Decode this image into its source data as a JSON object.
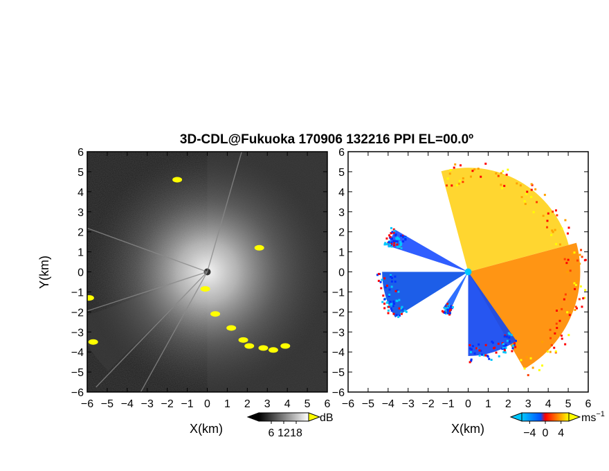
{
  "figure": {
    "title": "3D-CDL@Fukuoka 170906 132216 PPI EL=00.0º"
  },
  "chart_data": [
    {
      "type": "heatmap",
      "panel": "reflectivity",
      "xlabel": "X(km)",
      "ylabel": "Y(km)",
      "xlim": [
        -6,
        6
      ],
      "ylim": [
        -6,
        6
      ],
      "xticks": [
        "−6",
        "−5",
        "−4",
        "−3",
        "−2",
        "−1",
        "0",
        "1",
        "2",
        "3",
        "4",
        "5",
        "6"
      ],
      "yticks": [
        "6",
        "5",
        "4",
        "3",
        "2",
        "1",
        "0",
        "−1",
        "−2",
        "−3",
        "−4",
        "−5",
        "−6"
      ],
      "background_color": "#1e1e1e",
      "colorbar": {
        "unit": "dB",
        "ticks": [
          "6",
          "12",
          "18"
        ],
        "range": [
          0,
          24
        ],
        "colors": [
          "#000000",
          "#ffffff"
        ],
        "flag_color": "#ffff00"
      },
      "rays_deg": [
        160,
        198,
        226,
        241,
        74
      ],
      "flagged_regions": [
        {
          "x": -1.5,
          "y": 4.6
        },
        {
          "x": 2.6,
          "y": 1.2
        },
        {
          "x": -0.1,
          "y": -0.85
        },
        {
          "x": 0.4,
          "y": -2.1
        },
        {
          "x": 1.2,
          "y": -2.8
        },
        {
          "x": 1.8,
          "y": -3.4
        },
        {
          "x": 2.1,
          "y": -3.7
        },
        {
          "x": 2.8,
          "y": -3.8
        },
        {
          "x": 3.3,
          "y": -3.9
        },
        {
          "x": 3.9,
          "y": -3.7
        },
        {
          "x": -5.9,
          "y": -1.3
        },
        {
          "x": -5.7,
          "y": -3.5
        }
      ]
    },
    {
      "type": "heatmap",
      "panel": "doppler_velocity",
      "xlabel": "X(km)",
      "ylabel": "",
      "xlim": [
        -6,
        6
      ],
      "ylim": [
        -6,
        6
      ],
      "xticks": [
        "−6",
        "−5",
        "−4",
        "−3",
        "−2",
        "−1",
        "0",
        "1",
        "2",
        "3",
        "4",
        "5",
        "6"
      ],
      "yticks": [
        "6",
        "5",
        "4",
        "3",
        "2",
        "1",
        "0",
        "−1",
        "−2",
        "−3",
        "−4",
        "−5",
        "−6"
      ],
      "colorbar": {
        "unit": "ms",
        "unit_exponent": "−1",
        "ticks": [
          "−4",
          "0",
          "4"
        ],
        "range": [
          -6,
          6
        ],
        "colors": [
          "#00c8ff",
          "#0050ff",
          "#ff0000",
          "#ff8000",
          "#ffff00"
        ]
      },
      "sectors": [
        {
          "label": "receding",
          "from_deg": -60,
          "to_deg": 15,
          "radius_km": 5.6,
          "color": "#ff8c00"
        },
        {
          "label": "receding",
          "from_deg": 15,
          "to_deg": 105,
          "radius_km": 5.2,
          "color": "#ffd21e"
        },
        {
          "label": "approaching",
          "from_deg": 150,
          "to_deg": 162,
          "radius_km": 4.2,
          "color": "#1e50ff"
        },
        {
          "label": "approaching",
          "from_deg": 180,
          "to_deg": 212,
          "radius_km": 4.3,
          "color": "#0a50e6"
        },
        {
          "label": "approaching",
          "from_deg": 235,
          "to_deg": 245,
          "radius_km": 2.2,
          "color": "#1e64ff"
        },
        {
          "label": "approaching",
          "from_deg": 270,
          "to_deg": 305,
          "radius_km": 4.2,
          "color": "#1448f0"
        }
      ]
    }
  ]
}
